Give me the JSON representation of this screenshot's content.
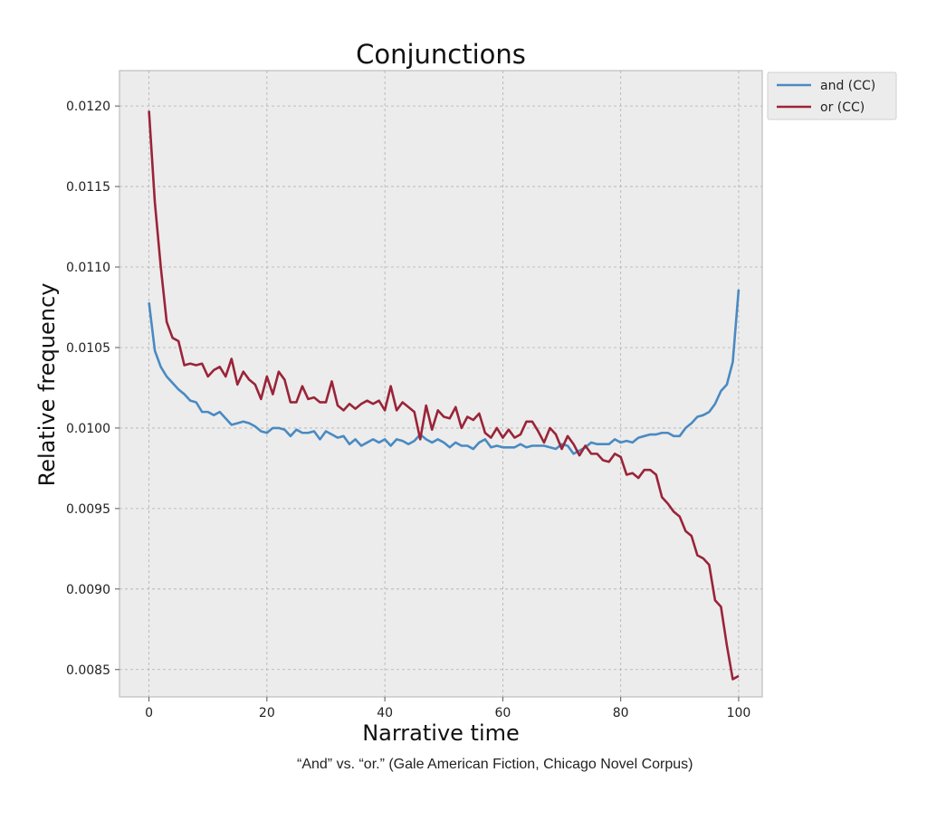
{
  "chart_data": {
    "type": "line",
    "title": "Conjunctions",
    "xlabel": "Narrative time",
    "ylabel": "Relative frequency",
    "xlim": [
      -5,
      104
    ],
    "ylim": [
      0.00833,
      0.01222
    ],
    "xticks": [
      0,
      20,
      40,
      60,
      80,
      100
    ],
    "yticks": [
      0.0085,
      0.009,
      0.0095,
      0.01,
      0.0105,
      0.011,
      0.0115,
      0.012
    ],
    "ytick_labels": [
      "0.0085",
      "0.0090",
      "0.0095",
      "0.0100",
      "0.0105",
      "0.0110",
      "0.0115",
      "0.0120"
    ],
    "grid": true,
    "legend_position": "outside-top-right",
    "x_start": 0,
    "x_step": 1,
    "series": [
      {
        "name": "and (CC)",
        "color": "#4a8ac2",
        "values": [
          0.01078,
          0.01048,
          0.01038,
          0.01032,
          0.01028,
          0.01024,
          0.01021,
          0.01017,
          0.01016,
          0.0101,
          0.0101,
          0.01008,
          0.0101,
          0.01006,
          0.01002,
          0.01003,
          0.01004,
          0.01003,
          0.01001,
          0.00998,
          0.00997,
          0.01,
          0.01,
          0.00999,
          0.00995,
          0.00999,
          0.00997,
          0.00997,
          0.00998,
          0.00993,
          0.00998,
          0.00996,
          0.00994,
          0.00995,
          0.0099,
          0.00993,
          0.00989,
          0.00991,
          0.00993,
          0.00991,
          0.00993,
          0.00989,
          0.00993,
          0.00992,
          0.0099,
          0.00992,
          0.00996,
          0.00993,
          0.00991,
          0.00993,
          0.00991,
          0.00988,
          0.00991,
          0.00989,
          0.00989,
          0.00987,
          0.00991,
          0.00993,
          0.00988,
          0.00989,
          0.00988,
          0.00988,
          0.00988,
          0.0099,
          0.00988,
          0.00989,
          0.00989,
          0.00989,
          0.00988,
          0.00987,
          0.0099,
          0.00989,
          0.00984,
          0.00986,
          0.00988,
          0.00991,
          0.0099,
          0.0099,
          0.0099,
          0.00993,
          0.00991,
          0.00992,
          0.00991,
          0.00994,
          0.00995,
          0.00996,
          0.00996,
          0.00997,
          0.00997,
          0.00995,
          0.00995,
          0.01,
          0.01003,
          0.01007,
          0.01008,
          0.0101,
          0.01015,
          0.01023,
          0.01027,
          0.01041,
          0.01086
        ]
      },
      {
        "name": "or (CC)",
        "color": "#9a2438",
        "values": [
          0.01197,
          0.0114,
          0.011,
          0.01066,
          0.01056,
          0.01054,
          0.01039,
          0.0104,
          0.01039,
          0.0104,
          0.01032,
          0.01036,
          0.01038,
          0.01032,
          0.01043,
          0.01027,
          0.01035,
          0.0103,
          0.01027,
          0.01018,
          0.01032,
          0.01021,
          0.01035,
          0.0103,
          0.01016,
          0.01016,
          0.01026,
          0.01018,
          0.01019,
          0.01016,
          0.01016,
          0.01029,
          0.01014,
          0.01011,
          0.01015,
          0.01012,
          0.01015,
          0.01017,
          0.01015,
          0.01017,
          0.01011,
          0.01026,
          0.01011,
          0.01016,
          0.01013,
          0.0101,
          0.00993,
          0.01014,
          0.00999,
          0.01011,
          0.01007,
          0.01006,
          0.01013,
          0.01,
          0.01007,
          0.01005,
          0.01009,
          0.00997,
          0.00994,
          0.01,
          0.00994,
          0.00999,
          0.00994,
          0.00996,
          0.01004,
          0.01004,
          0.00998,
          0.00991,
          0.01,
          0.00996,
          0.00987,
          0.00995,
          0.0099,
          0.00983,
          0.00989,
          0.00984,
          0.00984,
          0.0098,
          0.00979,
          0.00984,
          0.00982,
          0.00971,
          0.00972,
          0.00969,
          0.00974,
          0.00974,
          0.00971,
          0.00957,
          0.00953,
          0.00948,
          0.00945,
          0.00936,
          0.00933,
          0.00921,
          0.00919,
          0.00915,
          0.00893,
          0.00889,
          0.00865,
          0.00844,
          0.00846
        ]
      }
    ]
  },
  "caption": "“And” vs. “or.” (Gale American Fiction, Chicago Novel Corpus)"
}
